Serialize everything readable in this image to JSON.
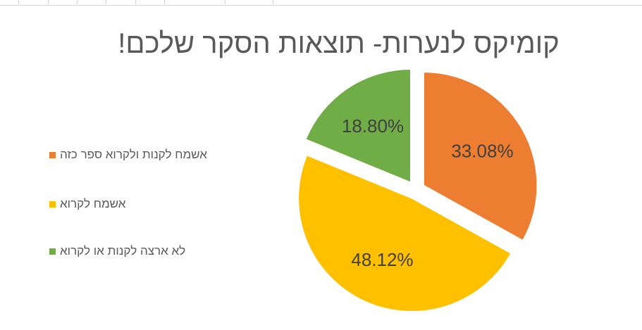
{
  "chart_data": {
    "type": "pie",
    "title": "קומיקס לנערות- תוצאות הסקר שלכם!",
    "exploded": true,
    "legend_position": "left",
    "series": [
      {
        "name": "אשמח לקנות ולקרוא ספר כזה",
        "value": 33.08,
        "label": "33.08%",
        "color": "#ED7D31"
      },
      {
        "name": "אשמח לקרוא",
        "value": 48.12,
        "label": "48.12%",
        "color": "#FFC000"
      },
      {
        "name": "לא ארצה לקנות או לקרוא",
        "value": 18.8,
        "label": "18.80%",
        "color": "#70AD47"
      }
    ]
  }
}
